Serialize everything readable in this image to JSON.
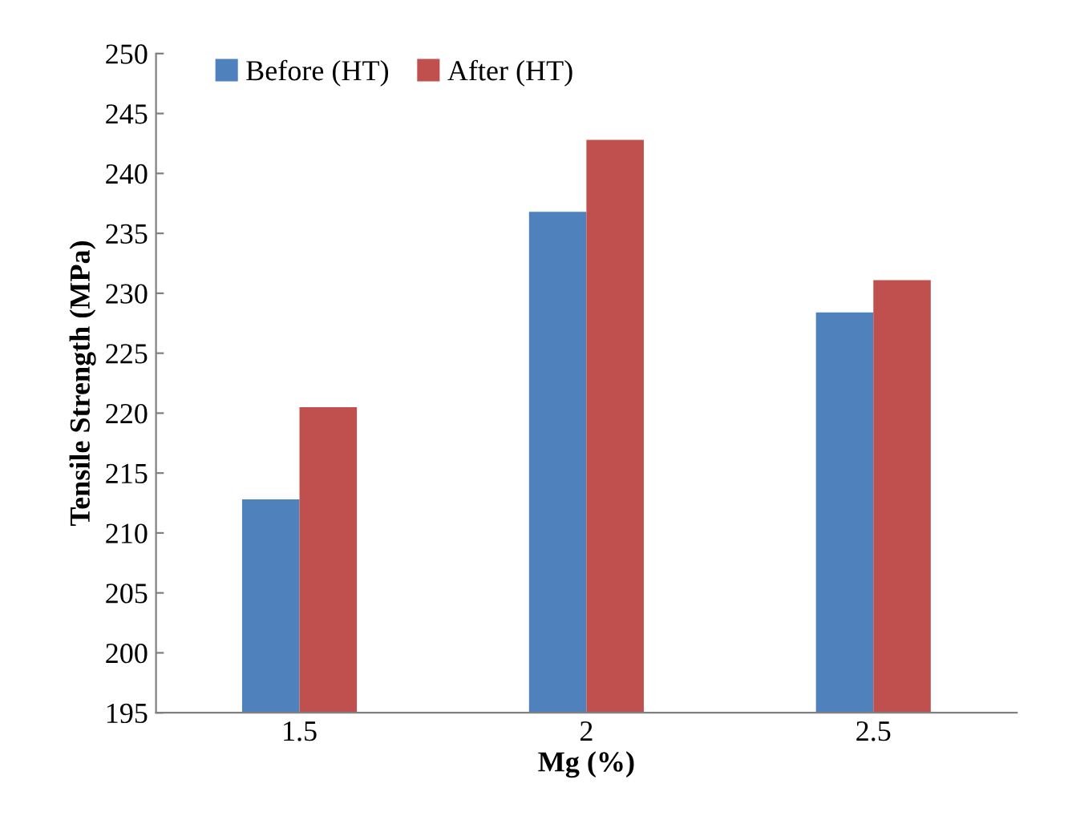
{
  "chart_data": {
    "type": "bar",
    "xlabel": "Mg (%)",
    "ylabel": "Tensile Strength (MPa)",
    "categories": [
      "1.5",
      "2",
      "2.5"
    ],
    "series": [
      {
        "name": "Before (HT)",
        "color": "#4f81bd",
        "values": [
          212.8,
          236.8,
          228.4
        ]
      },
      {
        "name": "After (HT)",
        "color": "#c0504d",
        "values": [
          220.5,
          242.8,
          231.1
        ]
      }
    ],
    "ylim": [
      195,
      250
    ],
    "yticks": [
      195,
      200,
      205,
      210,
      215,
      220,
      225,
      230,
      235,
      240,
      245,
      250
    ],
    "grid": false,
    "legend": "top left"
  }
}
